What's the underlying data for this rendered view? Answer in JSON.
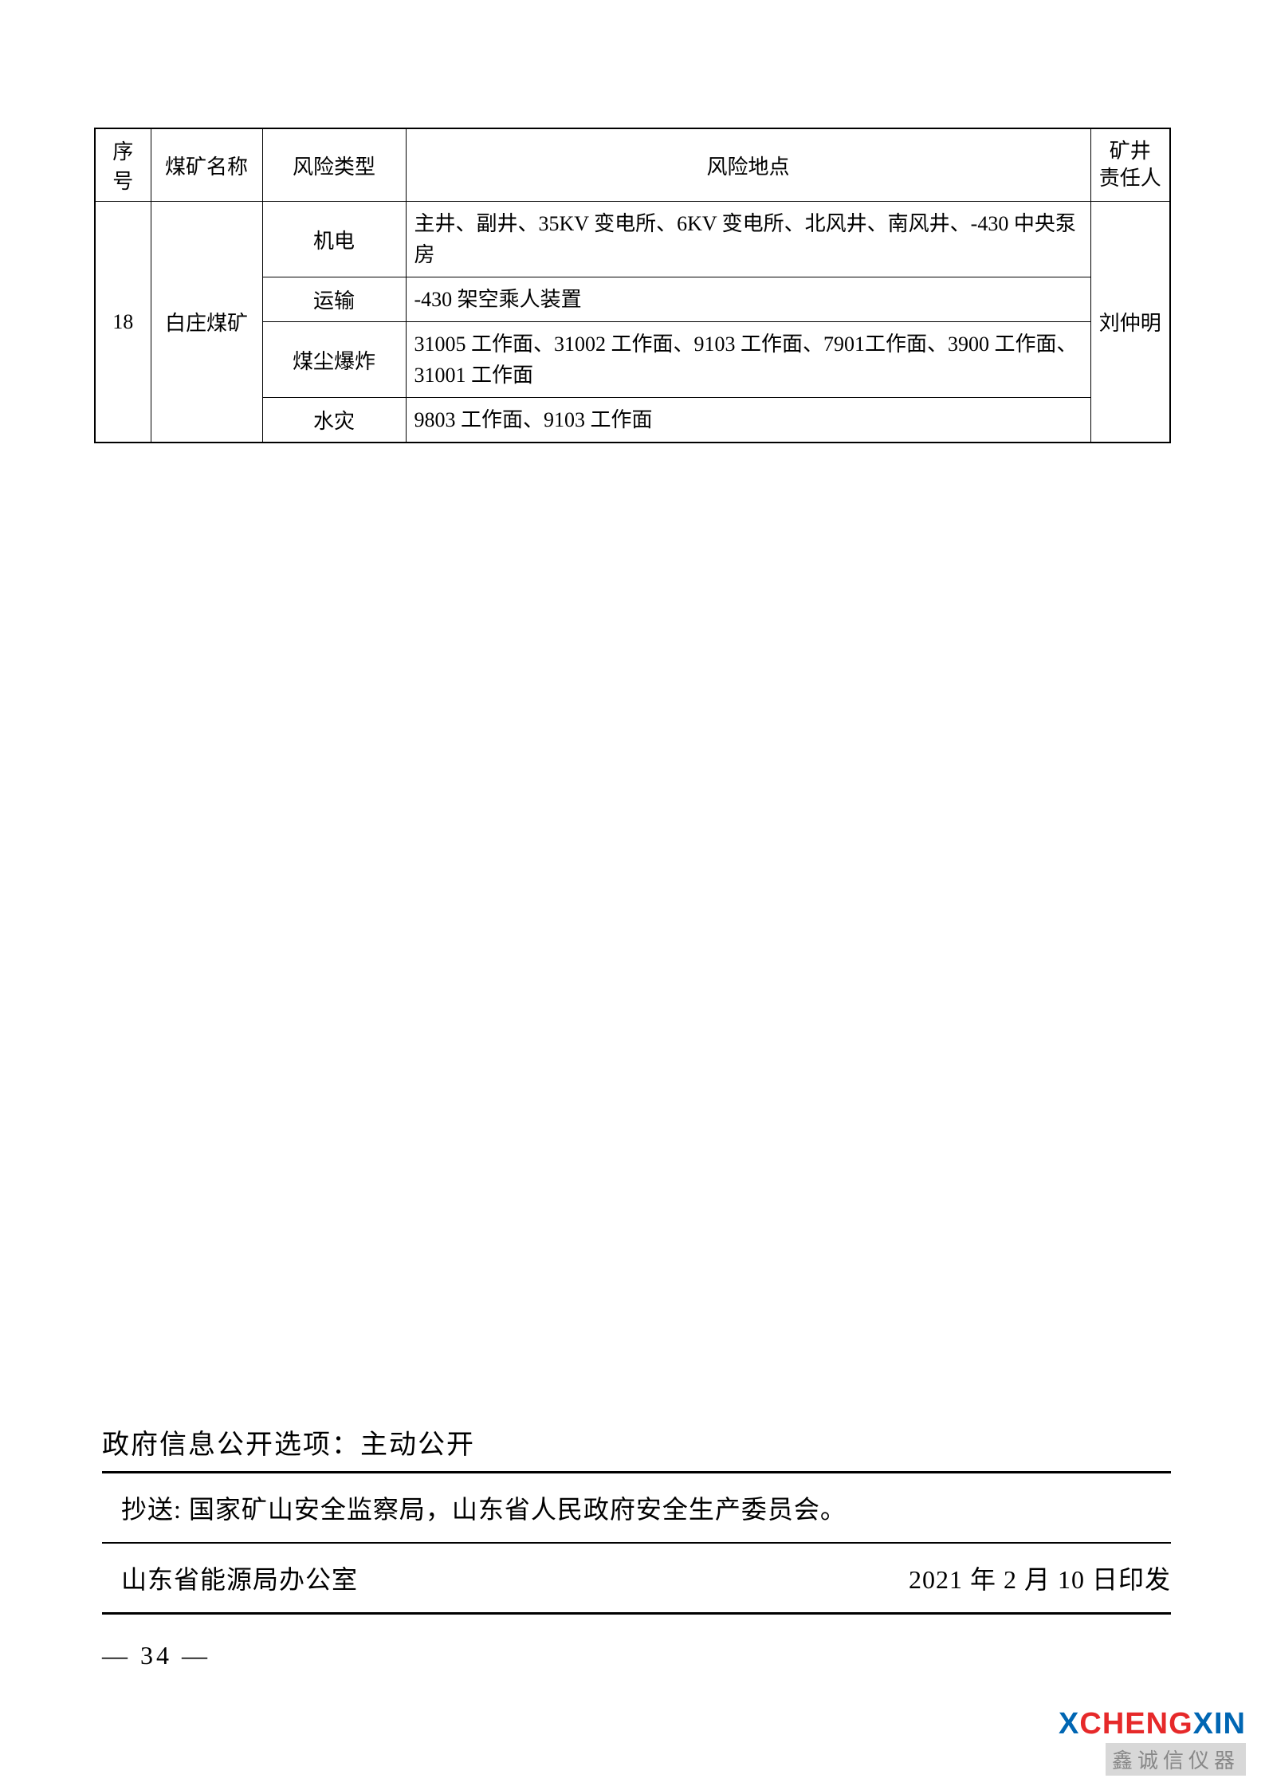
{
  "table": {
    "headers": {
      "seq": "序号",
      "mine_name": "煤矿名称",
      "risk_type": "风险类型",
      "risk_location": "风险地点",
      "mine_person": "矿井\n责任人"
    },
    "row": {
      "seq": "18",
      "mine_name": "白庄煤矿",
      "person": "刘仲明",
      "risks": [
        {
          "type": "机电",
          "location": "主井、副井、35KV 变电所、6KV 变电所、北风井、南风井、-430 中央泵房"
        },
        {
          "type": "运输",
          "location": "-430 架空乘人装置"
        },
        {
          "type": "煤尘爆炸",
          "location": "31005 工作面、31002 工作面、9103 工作面、7901工作面、3900 工作面、31001 工作面"
        },
        {
          "type": "水灾",
          "location": "9803 工作面、9103 工作面"
        }
      ]
    }
  },
  "footer": {
    "disclosure": "政府信息公开选项：主动公开",
    "cc": "抄送: 国家矿山安全监察局，山东省人民政府安全生产委员会。",
    "issuer": "山东省能源局办公室",
    "issue_date": "2021 年 2 月 10 日印发",
    "page_number": "— 34 —"
  },
  "watermark": {
    "brand_x": "X",
    "brand_ch": "CH",
    "brand_eng": "ENG",
    "brand_xin": "XIN",
    "subtitle": "鑫诚信仪器"
  },
  "styles": {
    "page_bg": "#ffffff",
    "border_color": "#000000",
    "text_color": "#000000",
    "watermark_blue": "#0066b3",
    "watermark_red": "#e6292a",
    "watermark_gray": "#888888",
    "table_font_size": 26,
    "footer_font_size": 32,
    "disclosure_font_size": 34
  }
}
